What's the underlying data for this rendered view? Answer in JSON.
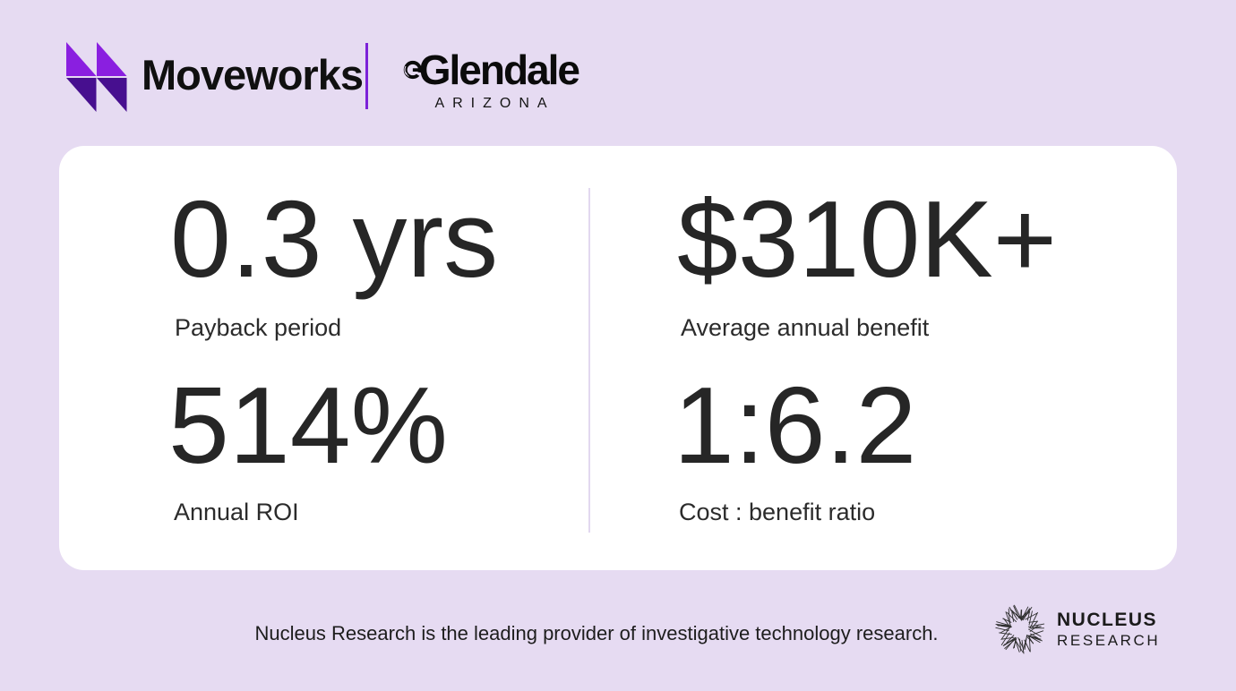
{
  "colors": {
    "background": "#e6dbf2",
    "card_background": "#ffffff",
    "logo_divider": "#7c22d8",
    "card_divider": "#e2d8f0",
    "moveworks_arrow_top": "#8a1fe0",
    "moveworks_arrow_bottom": "#470f8f",
    "text_dark": "#262626"
  },
  "header": {
    "moveworks_wordmark": "Moveworks",
    "glendale_name": "Glendale",
    "glendale_subtitle": "ARIZONA"
  },
  "stats": [
    {
      "value": "0.3 yrs",
      "label": "Payback period"
    },
    {
      "value": "$310K+",
      "label": "Average annual benefit"
    },
    {
      "value": "514%",
      "label": "Annual ROI"
    },
    {
      "value": "1:6.2",
      "label": "Cost : benefit ratio"
    }
  ],
  "footer": {
    "tagline": "Nucleus Research is the leading provider of investigative technology research.",
    "nucleus_name": "NUCLEUS",
    "nucleus_subname": "RESEARCH"
  }
}
